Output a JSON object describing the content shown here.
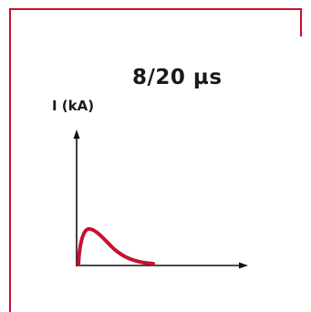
{
  "title": "8/20 µs",
  "y_axis_label": "I (kA)",
  "colors": {
    "frame": "#c8102e",
    "curve": "#c8102e",
    "axes": "#111111"
  },
  "diagram": {
    "type": "impulse-current-waveform",
    "rise_time_us": 8,
    "half_value_time_us": 20
  }
}
